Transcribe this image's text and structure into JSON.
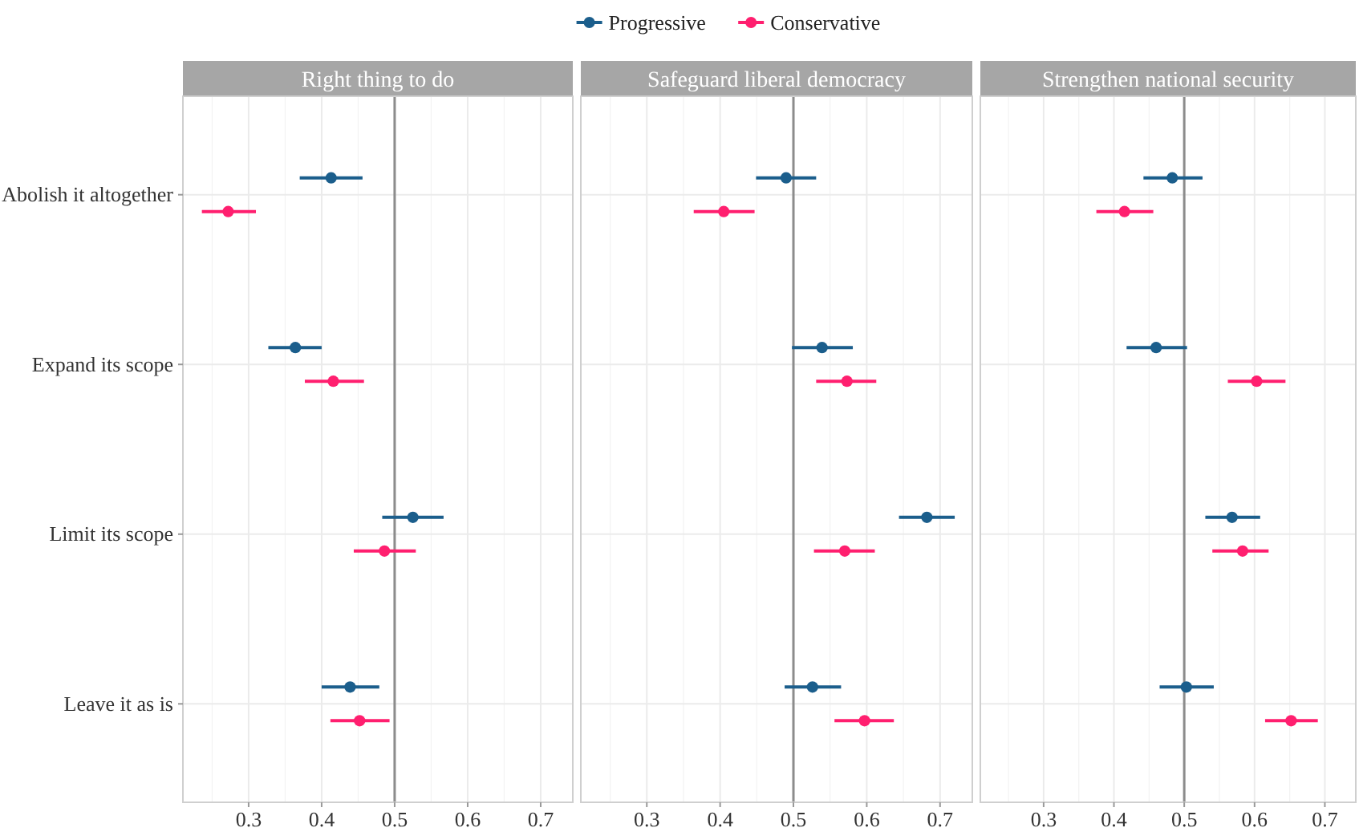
{
  "chart_data": [
    {
      "type": "scatter",
      "title": "Right thing to do",
      "orientation": "horizontal",
      "categories": [
        "Abolish it altogether",
        "Expand its scope",
        "Limit its scope",
        "Leave it as is"
      ],
      "xlim": [
        0.21,
        0.744
      ],
      "xticks": [
        0.3,
        0.4,
        0.5,
        0.6,
        0.7
      ],
      "grid": true,
      "legend": "top",
      "marker": "circle",
      "ref_lines": [
        {
          "axis": "x",
          "value": 0.5,
          "color": "#8c8c8c"
        }
      ],
      "series": [
        {
          "name": "Progressive",
          "color": "#1b5e8c",
          "values": [
            0.413,
            0.364,
            0.525,
            0.439
          ],
          "errors": [
            [
              0.37,
              0.456
            ],
            [
              0.327,
              0.4
            ],
            [
              0.483,
              0.567
            ],
            [
              0.4,
              0.479
            ]
          ]
        },
        {
          "name": "Conservative",
          "color": "#ff1f6f",
          "values": [
            0.272,
            0.416,
            0.486,
            0.452
          ],
          "errors": [
            [
              0.236,
              0.31
            ],
            [
              0.377,
              0.458
            ],
            [
              0.444,
              0.529
            ],
            [
              0.412,
              0.493
            ]
          ]
        }
      ]
    },
    {
      "type": "scatter",
      "title": "Safeguard liberal democracy",
      "orientation": "horizontal",
      "categories": [
        "Abolish it altogether",
        "Expand its scope",
        "Limit its scope",
        "Leave it as is"
      ],
      "xlim": [
        0.21,
        0.744
      ],
      "xticks": [
        0.3,
        0.4,
        0.5,
        0.6,
        0.7
      ],
      "grid": true,
      "tick_labels": "x",
      "marker": "circle",
      "ref_lines": [
        {
          "axis": "x",
          "value": 0.5,
          "color": "#8c8c8c"
        }
      ],
      "series": [
        {
          "name": "Progressive",
          "color": "#1b5e8c",
          "values": [
            0.49,
            0.539,
            0.682,
            0.526
          ],
          "errors": [
            [
              0.449,
              0.531
            ],
            [
              0.498,
              0.581
            ],
            [
              0.644,
              0.72
            ],
            [
              0.488,
              0.565
            ]
          ]
        },
        {
          "name": "Conservative",
          "color": "#ff1f6f",
          "values": [
            0.405,
            0.573,
            0.57,
            0.597
          ],
          "errors": [
            [
              0.364,
              0.447
            ],
            [
              0.531,
              0.613
            ],
            [
              0.528,
              0.611
            ],
            [
              0.556,
              0.637
            ]
          ]
        }
      ]
    },
    {
      "type": "scatter",
      "title": "Strengthen national security",
      "orientation": "horizontal",
      "categories": [
        "Abolish it altogether",
        "Expand its scope",
        "Limit its scope",
        "Leave it as is"
      ],
      "xlim": [
        0.21,
        0.744
      ],
      "xticks": [
        0.3,
        0.4,
        0.5,
        0.6,
        0.7
      ],
      "grid": true,
      "tick_labels": "x",
      "marker": "circle",
      "ref_lines": [
        {
          "axis": "x",
          "value": 0.5,
          "color": "#8c8c8c"
        }
      ],
      "series": [
        {
          "name": "Progressive",
          "color": "#1b5e8c",
          "values": [
            0.483,
            0.46,
            0.568,
            0.503
          ],
          "errors": [
            [
              0.442,
              0.526
            ],
            [
              0.418,
              0.504
            ],
            [
              0.53,
              0.608
            ],
            [
              0.465,
              0.542
            ]
          ]
        },
        {
          "name": "Conservative",
          "color": "#ff1f6f",
          "values": [
            0.415,
            0.603,
            0.583,
            0.652
          ],
          "errors": [
            [
              0.375,
              0.456
            ],
            [
              0.562,
              0.644
            ],
            [
              0.54,
              0.62
            ],
            [
              0.615,
              0.69
            ]
          ]
        }
      ]
    }
  ]
}
